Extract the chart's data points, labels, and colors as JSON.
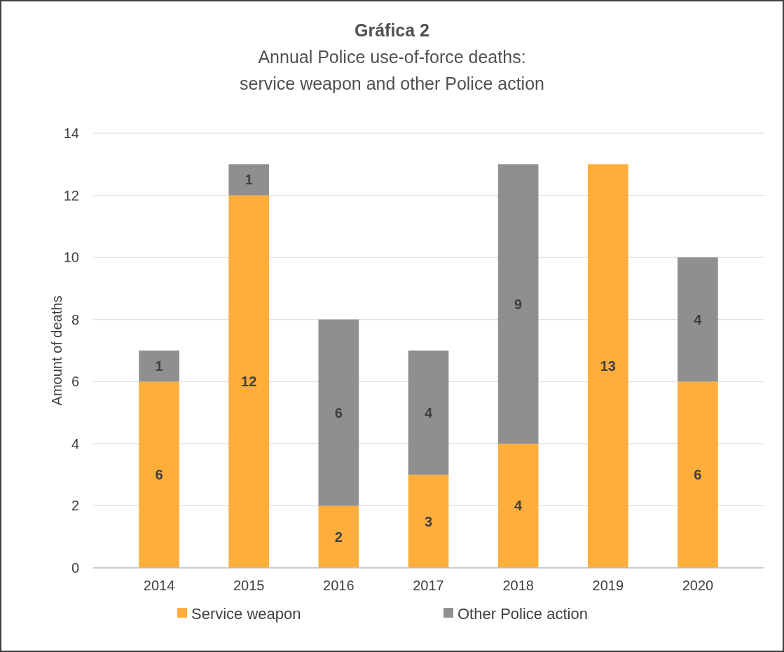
{
  "chart_data": {
    "type": "bar",
    "title": "Gráfica 2",
    "subtitle": "Annual Police use-of-force deaths:\nservice weapon and other Police action",
    "ylabel": "Amount of deaths",
    "categories": [
      "2014",
      "2015",
      "2016",
      "2017",
      "2018",
      "2019",
      "2020"
    ],
    "series": [
      {
        "name": "Service weapon",
        "color": "#ffad3b",
        "values": [
          6,
          12,
          2,
          3,
          4,
          13,
          6
        ]
      },
      {
        "name": "Other Police action",
        "color": "#8f8f90",
        "values": [
          1,
          1,
          6,
          4,
          9,
          null,
          4
        ]
      }
    ],
    "stacked": true,
    "ylim": [
      0,
      14
    ],
    "yticks": [
      0,
      2,
      4,
      6,
      8,
      10,
      12,
      14
    ],
    "grid": "y",
    "legend": "bottom",
    "data_labels": true
  }
}
